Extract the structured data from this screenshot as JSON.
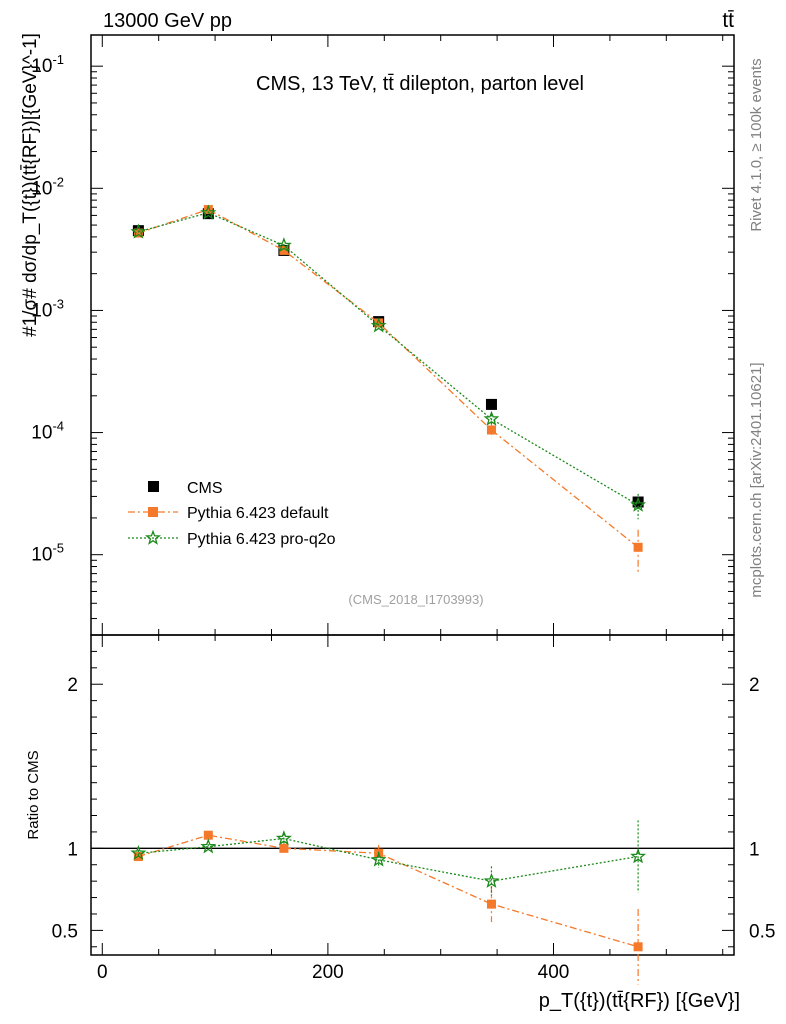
{
  "header": {
    "energy_label": "13000 GeV pp",
    "process_label": "tt̄"
  },
  "side": {
    "rivet_label": "Rivet 4.1.0, ≥ 100k events",
    "mcplots_label": "mcplots.cern.ch [arXiv:2401.10621]"
  },
  "chart_data": [
    {
      "type": "line",
      "panel": "main",
      "title": "CMS, 13 TeV, tt̄ dilepton, parton level",
      "watermark": "(CMS_2018_I1703993)",
      "ylabel": "#1/σ# dσ/dp_T({t})(tt̄{RF})[{GeV}^-1]",
      "yscale": "log",
      "ylim": [
        2.2e-06,
        0.18
      ],
      "xlim": [
        -10,
        560
      ],
      "y_tick_labels": [
        "10^-5",
        "10^-4",
        "10^-3",
        "10^-2",
        "10^-1"
      ],
      "x": [
        32,
        94,
        161,
        245,
        345,
        475
      ],
      "series": [
        {
          "name": "CMS",
          "color": "#000000",
          "marker": "square",
          "values": [
            0.0045,
            0.0062,
            0.0031,
            0.00081,
            0.00017,
            2.7e-05
          ]
        },
        {
          "name": "Pythia 6.423 default",
          "color": "#f5792a",
          "marker": "square",
          "line": "dash-dot",
          "values": [
            0.0043,
            0.0067,
            0.0031,
            0.00079,
            0.000105,
            1.15e-05
          ],
          "errors": [
            0.00015,
            0.0002,
            0.00012,
            4e-05,
            1.5e-05,
            4.5e-06
          ]
        },
        {
          "name": "Pythia 6.423 pro-q2o",
          "color": "#1a8a1a",
          "marker": "star",
          "line": "dotted",
          "values": [
            0.0044,
            0.0063,
            0.0034,
            0.00075,
            0.000129,
            2.55e-05
          ],
          "errors": [
            0.00012,
            0.00018,
            0.0001,
            3e-05,
            1.2e-05,
            6e-06
          ]
        }
      ]
    },
    {
      "type": "line",
      "panel": "ratio",
      "ylabel": "Ratio to CMS",
      "xlabel": "p_T({t})(tt̄{RF}) [{GeV}]",
      "ylim": [
        0.35,
        2.3
      ],
      "xlim": [
        -10,
        560
      ],
      "y_ticks": [
        0.5,
        1,
        2
      ],
      "y_tick_labels": [
        "0.5",
        "1",
        "2"
      ],
      "x_ticks": [
        0,
        200,
        400
      ],
      "x_tick_labels": [
        "0",
        "200",
        "400"
      ],
      "reference": 1,
      "x": [
        32,
        94,
        161,
        245,
        345,
        475
      ],
      "series": [
        {
          "name": "Pythia 6.423 default",
          "color": "#f5792a",
          "marker": "square",
          "line": "dash-dot",
          "values": [
            0.95,
            1.08,
            1.0,
            0.97,
            0.66,
            0.4
          ],
          "errors": [
            0.03,
            0.02,
            0.03,
            0.05,
            0.11,
            0.23
          ]
        },
        {
          "name": "Pythia 6.423 pro-q2o",
          "color": "#1a8a1a",
          "marker": "star",
          "line": "dotted",
          "values": [
            0.97,
            1.01,
            1.06,
            0.93,
            0.8,
            0.95
          ],
          "errors": [
            0.02,
            0.015,
            0.03,
            0.05,
            0.09,
            0.22
          ]
        }
      ]
    }
  ]
}
